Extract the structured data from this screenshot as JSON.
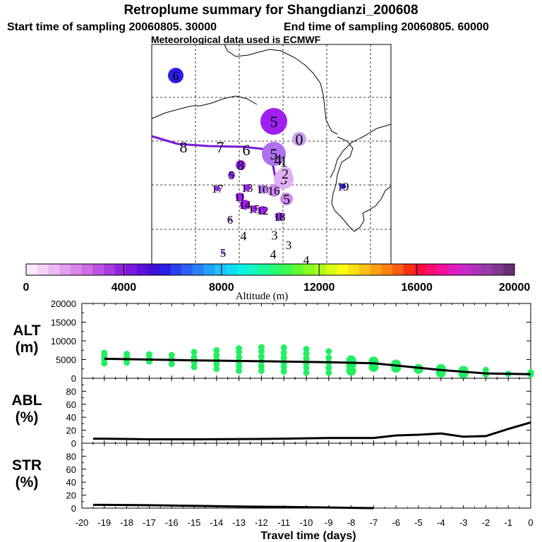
{
  "chart_data": [
    {
      "type": "map",
      "title": "Retroplume summary for Shangdianzi_200608",
      "subtitle_start": "Start time of sampling 20060805. 30000",
      "subtitle_end": "End time of sampling 20060805. 60000",
      "subtitle_met": "Meteorological data used is ECMWF",
      "map_markers": [
        {
          "label": "6",
          "color": "#2a1de6"
        },
        {
          "label": "5",
          "color": "#a020f0"
        },
        {
          "label": "0",
          "color": "#c9a0f0"
        },
        {
          "label": "8"
        },
        {
          "label": "7"
        },
        {
          "label": "6"
        },
        {
          "label": "5",
          "color": "#b070f0"
        },
        {
          "label": "4"
        },
        {
          "label": "1"
        },
        {
          "label": "8",
          "color": "#a020f0"
        },
        {
          "label": "5",
          "color": "#8a2be2"
        },
        {
          "label": "3",
          "color": "#e0b0f5"
        },
        {
          "label": "2",
          "color": "#e0b0f5"
        },
        {
          "label": "17",
          "color": "#8a2be2"
        },
        {
          "label": "13",
          "color": "#a020f0"
        },
        {
          "label": "10",
          "color": "#b070f0"
        },
        {
          "label": "16",
          "color": "#d08af0"
        },
        {
          "label": "5",
          "color": "#d08af0"
        },
        {
          "label": "19",
          "color": "#2a1de6"
        },
        {
          "label": "11",
          "color": "#a020f0"
        },
        {
          "label": "14",
          "color": "#a020f0"
        },
        {
          "label": "15",
          "color": "#a020f0"
        },
        {
          "label": "12",
          "color": "#a020f0"
        },
        {
          "label": "18",
          "color": "#8a2be2"
        },
        {
          "label": "6",
          "color": "#b070f0"
        },
        {
          "label": "4"
        },
        {
          "label": "3"
        },
        {
          "label": "5",
          "color": "#b070f0"
        },
        {
          "label": "4"
        },
        {
          "label": "3"
        },
        {
          "label": "4"
        }
      ]
    },
    {
      "type": "colorbar",
      "xlabel": "Altitude (m)",
      "range": [
        0,
        20000
      ],
      "tick_labels": [
        "0",
        "4000",
        "8000",
        "12000",
        "16000",
        "20000"
      ],
      "colors": [
        "#fbe8fb",
        "#f4d0f6",
        "#ecb8f2",
        "#e3a0ee",
        "#d888ea",
        "#cc6ee6",
        "#bb52e3",
        "#a93ae0",
        "#9125de",
        "#7a18dc",
        "#5c0fd8",
        "#3e10d6",
        "#2a1de6",
        "#2840f2",
        "#2a60f6",
        "#2a80fa",
        "#24a0fc",
        "#1cc0fc",
        "#10dcf8",
        "#0cf0e4",
        "#10f8c0",
        "#18fc96",
        "#28fc70",
        "#3cfc4c",
        "#60fc30",
        "#88fc20",
        "#b0fc18",
        "#d8fc14",
        "#fcfc10",
        "#fce010",
        "#fcc010",
        "#fca010",
        "#fc8010",
        "#fc5c10",
        "#fc3010",
        "#fc0c40",
        "#fc0c70",
        "#f4109a",
        "#e01cbc",
        "#c828c8",
        "#b030bc",
        "#983aa8",
        "#80388e",
        "#6a2c74"
      ]
    },
    {
      "type": "scatter",
      "ylabel": "ALT\n(m)",
      "ylim": [
        0,
        20000
      ],
      "yticks": [
        "0",
        "5000",
        "10000",
        "15000",
        "20000"
      ],
      "dot_color": "#20f060",
      "median_line": {
        "x": [
          -19,
          -15,
          -9,
          -7,
          -4,
          -2,
          0
        ],
        "y": [
          5200,
          4800,
          4300,
          4000,
          2200,
          1300,
          1100
        ]
      },
      "clusters": [
        {
          "x": -19,
          "y": [
            4000,
            5000,
            6000,
            6800
          ]
        },
        {
          "x": -18,
          "y": [
            4200,
            5000,
            5800,
            6500
          ]
        },
        {
          "x": -17,
          "y": [
            4500,
            5400,
            6400
          ]
        },
        {
          "x": -16,
          "y": [
            3800,
            5000,
            6200
          ]
        },
        {
          "x": -15,
          "y": [
            3000,
            4300,
            5500,
            7000
          ]
        },
        {
          "x": -14,
          "y": [
            2500,
            3800,
            5000,
            6200,
            7500
          ]
        },
        {
          "x": -13,
          "y": [
            2000,
            3200,
            4400,
            5600,
            7000,
            8000
          ]
        },
        {
          "x": -12,
          "y": [
            2000,
            3200,
            4500,
            5800,
            7200,
            8300
          ]
        },
        {
          "x": -11,
          "y": [
            1800,
            3000,
            4200,
            5500,
            6800,
            8200
          ]
        },
        {
          "x": -10,
          "y": [
            1500,
            2800,
            4000,
            5300,
            6600,
            7800
          ]
        },
        {
          "x": -9,
          "y": [
            1500,
            2800,
            4200,
            5500,
            7200
          ]
        },
        {
          "x": -8,
          "y": [
            2000,
            3500,
            4800
          ]
        },
        {
          "x": -7,
          "y": [
            3000,
            4500
          ]
        },
        {
          "x": -6,
          "y": [
            2800,
            3700
          ]
        },
        {
          "x": -5,
          "y": [
            2500
          ]
        },
        {
          "x": -4,
          "y": [
            1500,
            2500
          ]
        },
        {
          "x": -3,
          "y": [
            1200,
            2000
          ]
        },
        {
          "x": -2,
          "y": [
            1000,
            2200
          ]
        },
        {
          "x": -1,
          "y": [
            1200
          ]
        },
        {
          "x": 0,
          "y": [
            1000,
            1600
          ]
        }
      ]
    },
    {
      "type": "line",
      "ylabel": "ABL\n(%)",
      "ylim": [
        0,
        100
      ],
      "yticks": [
        "0",
        "20",
        "40",
        "60",
        "80"
      ],
      "x": [
        -19.5,
        -19,
        -17,
        -15,
        -12,
        -9,
        -7,
        -6,
        -5,
        -4,
        -3,
        -2,
        -1,
        0
      ],
      "y": [
        7,
        7,
        6,
        6,
        6.5,
        8,
        8,
        12,
        13,
        15,
        10,
        11,
        22,
        32
      ]
    },
    {
      "type": "line",
      "ylabel": "STR\n(%)",
      "ylim": [
        0,
        100
      ],
      "yticks": [
        "0",
        "20",
        "40",
        "60",
        "80"
      ],
      "x": [
        -19.5,
        -19,
        -17,
        -15,
        -13,
        -11,
        -9,
        -7
      ],
      "y": [
        5,
        5,
        4.5,
        3.5,
        2.5,
        1.8,
        1,
        0
      ],
      "xlabel": "Travel time (days)",
      "xlim": [
        -20,
        0
      ],
      "xticks": [
        "-20",
        "-19",
        "-18",
        "-17",
        "-16",
        "-15",
        "-14",
        "-13",
        "-12",
        "-11",
        "-10",
        "-9",
        "-8",
        "-7",
        "-6",
        "-5",
        "-4",
        "-3",
        "-2",
        "-1",
        "0"
      ]
    }
  ]
}
